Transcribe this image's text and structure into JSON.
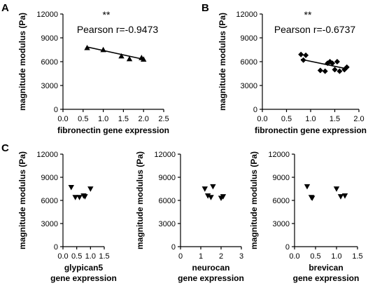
{
  "panel_letters": [
    "A",
    "B",
    "C"
  ],
  "chart_data": [
    {
      "panel": "A",
      "type": "scatter",
      "marker": "triangle-up",
      "title": "",
      "xlabel": [
        "fibronectin gene expression"
      ],
      "ylabel": "magnitude modulus (Pa)",
      "xlim": [
        0,
        2.5
      ],
      "ylim": [
        0,
        12000
      ],
      "xticks": [
        0,
        0.5,
        1,
        1.5,
        2,
        2.5
      ],
      "xtick_labels": [
        "0.0",
        "0.5",
        "1.0",
        "1.5",
        "2.0",
        "2.5"
      ],
      "yticks": [
        0,
        3000,
        6000,
        9000,
        12000
      ],
      "ytick_labels": [
        "0",
        "3000",
        "6000",
        "9000",
        "12000"
      ],
      "points": [
        [
          0.6,
          7750
        ],
        [
          1.0,
          7500
        ],
        [
          1.45,
          6700
        ],
        [
          1.65,
          6350
        ],
        [
          1.95,
          6500
        ],
        [
          2.0,
          6300
        ]
      ],
      "fit_line": [
        [
          0.6,
          7850
        ],
        [
          2.0,
          6300
        ]
      ],
      "annotations": [
        "**",
        "Pearson r=-0.9473"
      ]
    },
    {
      "panel": "B",
      "type": "scatter",
      "marker": "diamond",
      "title": "",
      "xlabel": [
        "fibronectin gene expression"
      ],
      "ylabel": "magnitude modulus (Pa)",
      "xlim": [
        0,
        2.0
      ],
      "ylim": [
        0,
        12000
      ],
      "xticks": [
        0,
        0.5,
        1,
        1.5,
        2
      ],
      "xtick_labels": [
        "0.0",
        "0.5",
        "1.0",
        "1.5",
        "2.0"
      ],
      "yticks": [
        0,
        3000,
        6000,
        9000,
        12000
      ],
      "ytick_labels": [
        "0",
        "3000",
        "6000",
        "9000",
        "12000"
      ],
      "points": [
        [
          0.8,
          6900
        ],
        [
          0.85,
          6200
        ],
        [
          0.9,
          6800
        ],
        [
          1.2,
          4900
        ],
        [
          1.3,
          4800
        ],
        [
          1.35,
          5800
        ],
        [
          1.4,
          6000
        ],
        [
          1.45,
          5800
        ],
        [
          1.5,
          5000
        ],
        [
          1.55,
          6000
        ],
        [
          1.6,
          4800
        ],
        [
          1.7,
          5000
        ],
        [
          1.75,
          5300
        ]
      ],
      "fit_line": [
        [
          0.8,
          6300
        ],
        [
          1.75,
          5100
        ]
      ],
      "annotations": [
        "**",
        "Pearson r=-0.6737"
      ]
    },
    {
      "panel": "C-1",
      "type": "scatter",
      "marker": "triangle-down",
      "title": "",
      "xlabel": [
        "glypican5",
        "gene expression"
      ],
      "ylabel": "magnitude modulus (Pa)",
      "xlim": [
        0,
        1.5
      ],
      "ylim": [
        0,
        12000
      ],
      "xticks": [
        0,
        0.5,
        1,
        1.5
      ],
      "xtick_labels": [
        "0.0",
        "0.5",
        "1.0",
        "1.5"
      ],
      "yticks": [
        0,
        3000,
        6000,
        9000,
        12000
      ],
      "ytick_labels": [
        "0",
        "3000",
        "6000",
        "9000",
        "12000"
      ],
      "points": [
        [
          0.3,
          7700
        ],
        [
          0.45,
          6400
        ],
        [
          0.6,
          6400
        ],
        [
          0.75,
          6600
        ],
        [
          0.8,
          6500
        ],
        [
          1.0,
          7500
        ]
      ],
      "annotations": []
    },
    {
      "panel": "C-2",
      "type": "scatter",
      "marker": "triangle-down",
      "title": "",
      "xlabel": [
        "neurocan",
        "gene expression"
      ],
      "ylabel": "magnitude modulus (Pa)",
      "xlim": [
        0,
        3
      ],
      "ylim": [
        0,
        12000
      ],
      "xticks": [
        0,
        1,
        2,
        3
      ],
      "xtick_labels": [
        "0",
        "1",
        "2",
        "3"
      ],
      "yticks": [
        0,
        3000,
        6000,
        9000,
        12000
      ],
      "ytick_labels": [
        "0",
        "3000",
        "6000",
        "9000",
        "12000"
      ],
      "points": [
        [
          1.2,
          7500
        ],
        [
          1.35,
          6600
        ],
        [
          1.5,
          6400
        ],
        [
          1.6,
          7800
        ],
        [
          2.0,
          6300
        ],
        [
          2.1,
          6500
        ]
      ],
      "annotations": []
    },
    {
      "panel": "C-3",
      "type": "scatter",
      "marker": "triangle-down",
      "title": "",
      "xlabel": [
        "brevican",
        "gene expression"
      ],
      "ylabel": "magnitude modulus (Pa)",
      "xlim": [
        0,
        1.5
      ],
      "ylim": [
        0,
        12000
      ],
      "xticks": [
        0,
        0.5,
        1,
        1.5
      ],
      "xtick_labels": [
        "0.0",
        "0.5",
        "1.0",
        "1.5"
      ],
      "yticks": [
        0,
        3000,
        6000,
        9000,
        12000
      ],
      "ytick_labels": [
        "0",
        "3000",
        "6000",
        "9000",
        "12000"
      ],
      "points": [
        [
          0.3,
          7800
        ],
        [
          0.4,
          6400
        ],
        [
          0.42,
          6300
        ],
        [
          1.0,
          7500
        ],
        [
          1.1,
          6500
        ],
        [
          1.2,
          6600
        ]
      ],
      "annotations": []
    }
  ]
}
